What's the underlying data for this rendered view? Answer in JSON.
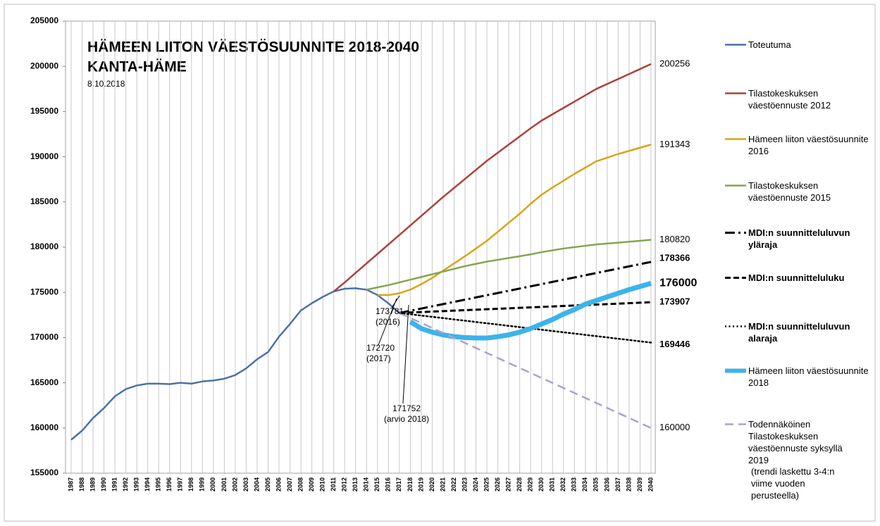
{
  "chart_data": {
    "type": "line",
    "title": "HÄMEEN LIITON VÄESTÖSUUNNITE 2018-2040",
    "subtitle": "KANTA-HÄME",
    "date": "8.10.2018",
    "categories": [
      "1987",
      "1988",
      "1989",
      "1990",
      "1991",
      "1992",
      "1993",
      "1994",
      "1995",
      "1996",
      "1997",
      "1998",
      "1999",
      "2000",
      "2001",
      "2002",
      "2003",
      "2004",
      "2005",
      "2006",
      "2007",
      "2008",
      "2009",
      "2010",
      "2011",
      "2012",
      "2013",
      "2014",
      "2015",
      "2016",
      "2017",
      "2018",
      "2019",
      "2020",
      "2021",
      "2022",
      "2023",
      "2024",
      "2025",
      "2026",
      "2027",
      "2028",
      "2029",
      "2030",
      "2031",
      "2032",
      "2033",
      "2034",
      "2035",
      "2036",
      "2037",
      "2038",
      "2039",
      "2040"
    ],
    "ylim": [
      155000,
      205000
    ],
    "yticks": [
      155000,
      160000,
      165000,
      170000,
      175000,
      180000,
      185000,
      190000,
      195000,
      200000,
      205000
    ],
    "grid": "x",
    "legend": "right",
    "series": [
      {
        "name": "Toteutuma",
        "color": "#4a72a8",
        "dash": "solid",
        "values": [
          158700,
          159700,
          161100,
          162200,
          163500,
          164300,
          164700,
          164900,
          164900,
          164850,
          165000,
          164900,
          165150,
          165250,
          165450,
          165850,
          166600,
          167600,
          168400,
          170100,
          171500,
          173000,
          173800,
          174500,
          175100,
          175400,
          175450,
          175300,
          174700,
          173781,
          172720,
          null,
          null,
          null,
          null,
          null,
          null,
          null,
          null,
          null,
          null,
          null,
          null,
          null,
          null,
          null,
          null,
          null,
          null,
          null,
          null,
          null,
          null,
          null
        ]
      },
      {
        "name": "Tilastokeskuksen väestöennuste 2012",
        "color": "#b0403b",
        "dash": "solid",
        "values": [
          null,
          null,
          null,
          null,
          null,
          null,
          null,
          null,
          null,
          null,
          null,
          null,
          null,
          null,
          null,
          null,
          null,
          null,
          null,
          null,
          null,
          null,
          null,
          null,
          175100,
          176100,
          177150,
          178200,
          179250,
          180300,
          181350,
          182400,
          183450,
          184500,
          185550,
          186550,
          187550,
          188550,
          189550,
          190450,
          191350,
          192250,
          193150,
          194000,
          194700,
          195400,
          196100,
          196800,
          197500,
          198050,
          198600,
          199150,
          199700,
          200256
        ]
      },
      {
        "name": "Hämeen liiton väestösuunnite 2016",
        "color": "#d8a514",
        "dash": "solid",
        "values": [
          null,
          null,
          null,
          null,
          null,
          null,
          null,
          null,
          null,
          null,
          null,
          null,
          null,
          null,
          null,
          null,
          null,
          null,
          null,
          null,
          null,
          null,
          null,
          null,
          null,
          null,
          null,
          null,
          174700,
          174700,
          174900,
          175300,
          175900,
          176600,
          177400,
          178200,
          179000,
          179850,
          180700,
          181700,
          182700,
          183700,
          184800,
          185800,
          186600,
          187350,
          188100,
          188800,
          189500,
          189900,
          190300,
          190650,
          191000,
          191343
        ]
      },
      {
        "name": "Tilastokeskuksen väestöennuste 2015",
        "color": "#86a450",
        "dash": "solid",
        "values": [
          null,
          null,
          null,
          null,
          null,
          null,
          null,
          null,
          null,
          null,
          null,
          null,
          null,
          null,
          null,
          null,
          null,
          null,
          null,
          null,
          null,
          null,
          null,
          null,
          null,
          null,
          null,
          175300,
          175550,
          175800,
          176100,
          176400,
          176700,
          177000,
          177300,
          177600,
          177900,
          178150,
          178400,
          178600,
          178800,
          179000,
          179200,
          179450,
          179650,
          179850,
          180000,
          180150,
          180300,
          180400,
          180500,
          180600,
          180700,
          180820
        ]
      },
      {
        "name": "MDI:n suunnitteluluvun yläraja",
        "color": "#000000",
        "dash": "dashdot",
        "values": [
          null,
          null,
          null,
          null,
          null,
          null,
          null,
          null,
          null,
          null,
          null,
          null,
          null,
          null,
          null,
          null,
          null,
          null,
          null,
          null,
          null,
          null,
          null,
          null,
          null,
          null,
          null,
          null,
          null,
          null,
          172720,
          172966,
          173211,
          173457,
          173702,
          173948,
          174193,
          174439,
          174684,
          174930,
          175175,
          175421,
          175666,
          175912,
          176157,
          176403,
          176648,
          176894,
          177139,
          177385,
          177630,
          177876,
          178121,
          178366
        ]
      },
      {
        "name": "MDI:n suunnitteluluku",
        "color": "#000000",
        "dash": "dash",
        "values": [
          null,
          null,
          null,
          null,
          null,
          null,
          null,
          null,
          null,
          null,
          null,
          null,
          null,
          null,
          null,
          null,
          null,
          null,
          null,
          null,
          null,
          null,
          null,
          null,
          null,
          null,
          null,
          null,
          null,
          null,
          172720,
          172772,
          172823,
          172875,
          172926,
          172978,
          173030,
          173081,
          173133,
          173184,
          173236,
          173288,
          173339,
          173391,
          173442,
          173494,
          173546,
          173597,
          173649,
          173700,
          173752,
          173804,
          173855,
          173907
        ]
      },
      {
        "name": "MDI:n suunnitteluluvun alaraja",
        "color": "#000000",
        "dash": "dot",
        "values": [
          null,
          null,
          null,
          null,
          null,
          null,
          null,
          null,
          null,
          null,
          null,
          null,
          null,
          null,
          null,
          null,
          null,
          null,
          null,
          null,
          null,
          null,
          null,
          null,
          null,
          null,
          null,
          null,
          null,
          null,
          172720,
          172578,
          172435,
          172293,
          172151,
          172008,
          171866,
          171724,
          171581,
          171439,
          171297,
          171154,
          171012,
          170870,
          170727,
          170585,
          170443,
          170300,
          170158,
          170016,
          169873,
          169731,
          169588,
          169446
        ]
      },
      {
        "name": "Hämeen liiton väestösuunnite 2018",
        "color": "#3db3ea",
        "dash": "thick",
        "values": [
          null,
          null,
          null,
          null,
          null,
          null,
          null,
          null,
          null,
          null,
          null,
          null,
          null,
          null,
          null,
          null,
          null,
          null,
          null,
          null,
          null,
          null,
          null,
          null,
          null,
          null,
          null,
          null,
          null,
          null,
          null,
          171752,
          171000,
          170600,
          170300,
          170100,
          170000,
          169950,
          169950,
          170100,
          170300,
          170600,
          171000,
          171500,
          172000,
          172600,
          173100,
          173700,
          174100,
          174500,
          174900,
          175300,
          175650,
          176000
        ]
      },
      {
        "name": "Todennäköinen Tilastokeskuksen väestöennuste syksyllä 2019",
        "color": "#aaa3c9",
        "dash": "longdash",
        "values": [
          null,
          null,
          null,
          null,
          null,
          null,
          null,
          null,
          null,
          null,
          null,
          null,
          null,
          null,
          null,
          null,
          null,
          null,
          null,
          null,
          null,
          null,
          null,
          null,
          null,
          null,
          null,
          null,
          null,
          null,
          172720,
          172167,
          171614,
          171061,
          170508,
          169955,
          169402,
          168849,
          168296,
          167743,
          167190,
          166637,
          166084,
          165531,
          164978,
          164425,
          163872,
          163319,
          162766,
          162213,
          161660,
          161107,
          160554,
          160000
        ]
      }
    ],
    "legend_note": "(trendi laskettu 3-4:n viime vuoden perusteella)",
    "annotations": [
      {
        "label": "173781",
        "note": "(2016)"
      },
      {
        "label": "172720",
        "note": "(2017)"
      },
      {
        "label": "171752",
        "note": "(arvio 2018)"
      }
    ]
  }
}
